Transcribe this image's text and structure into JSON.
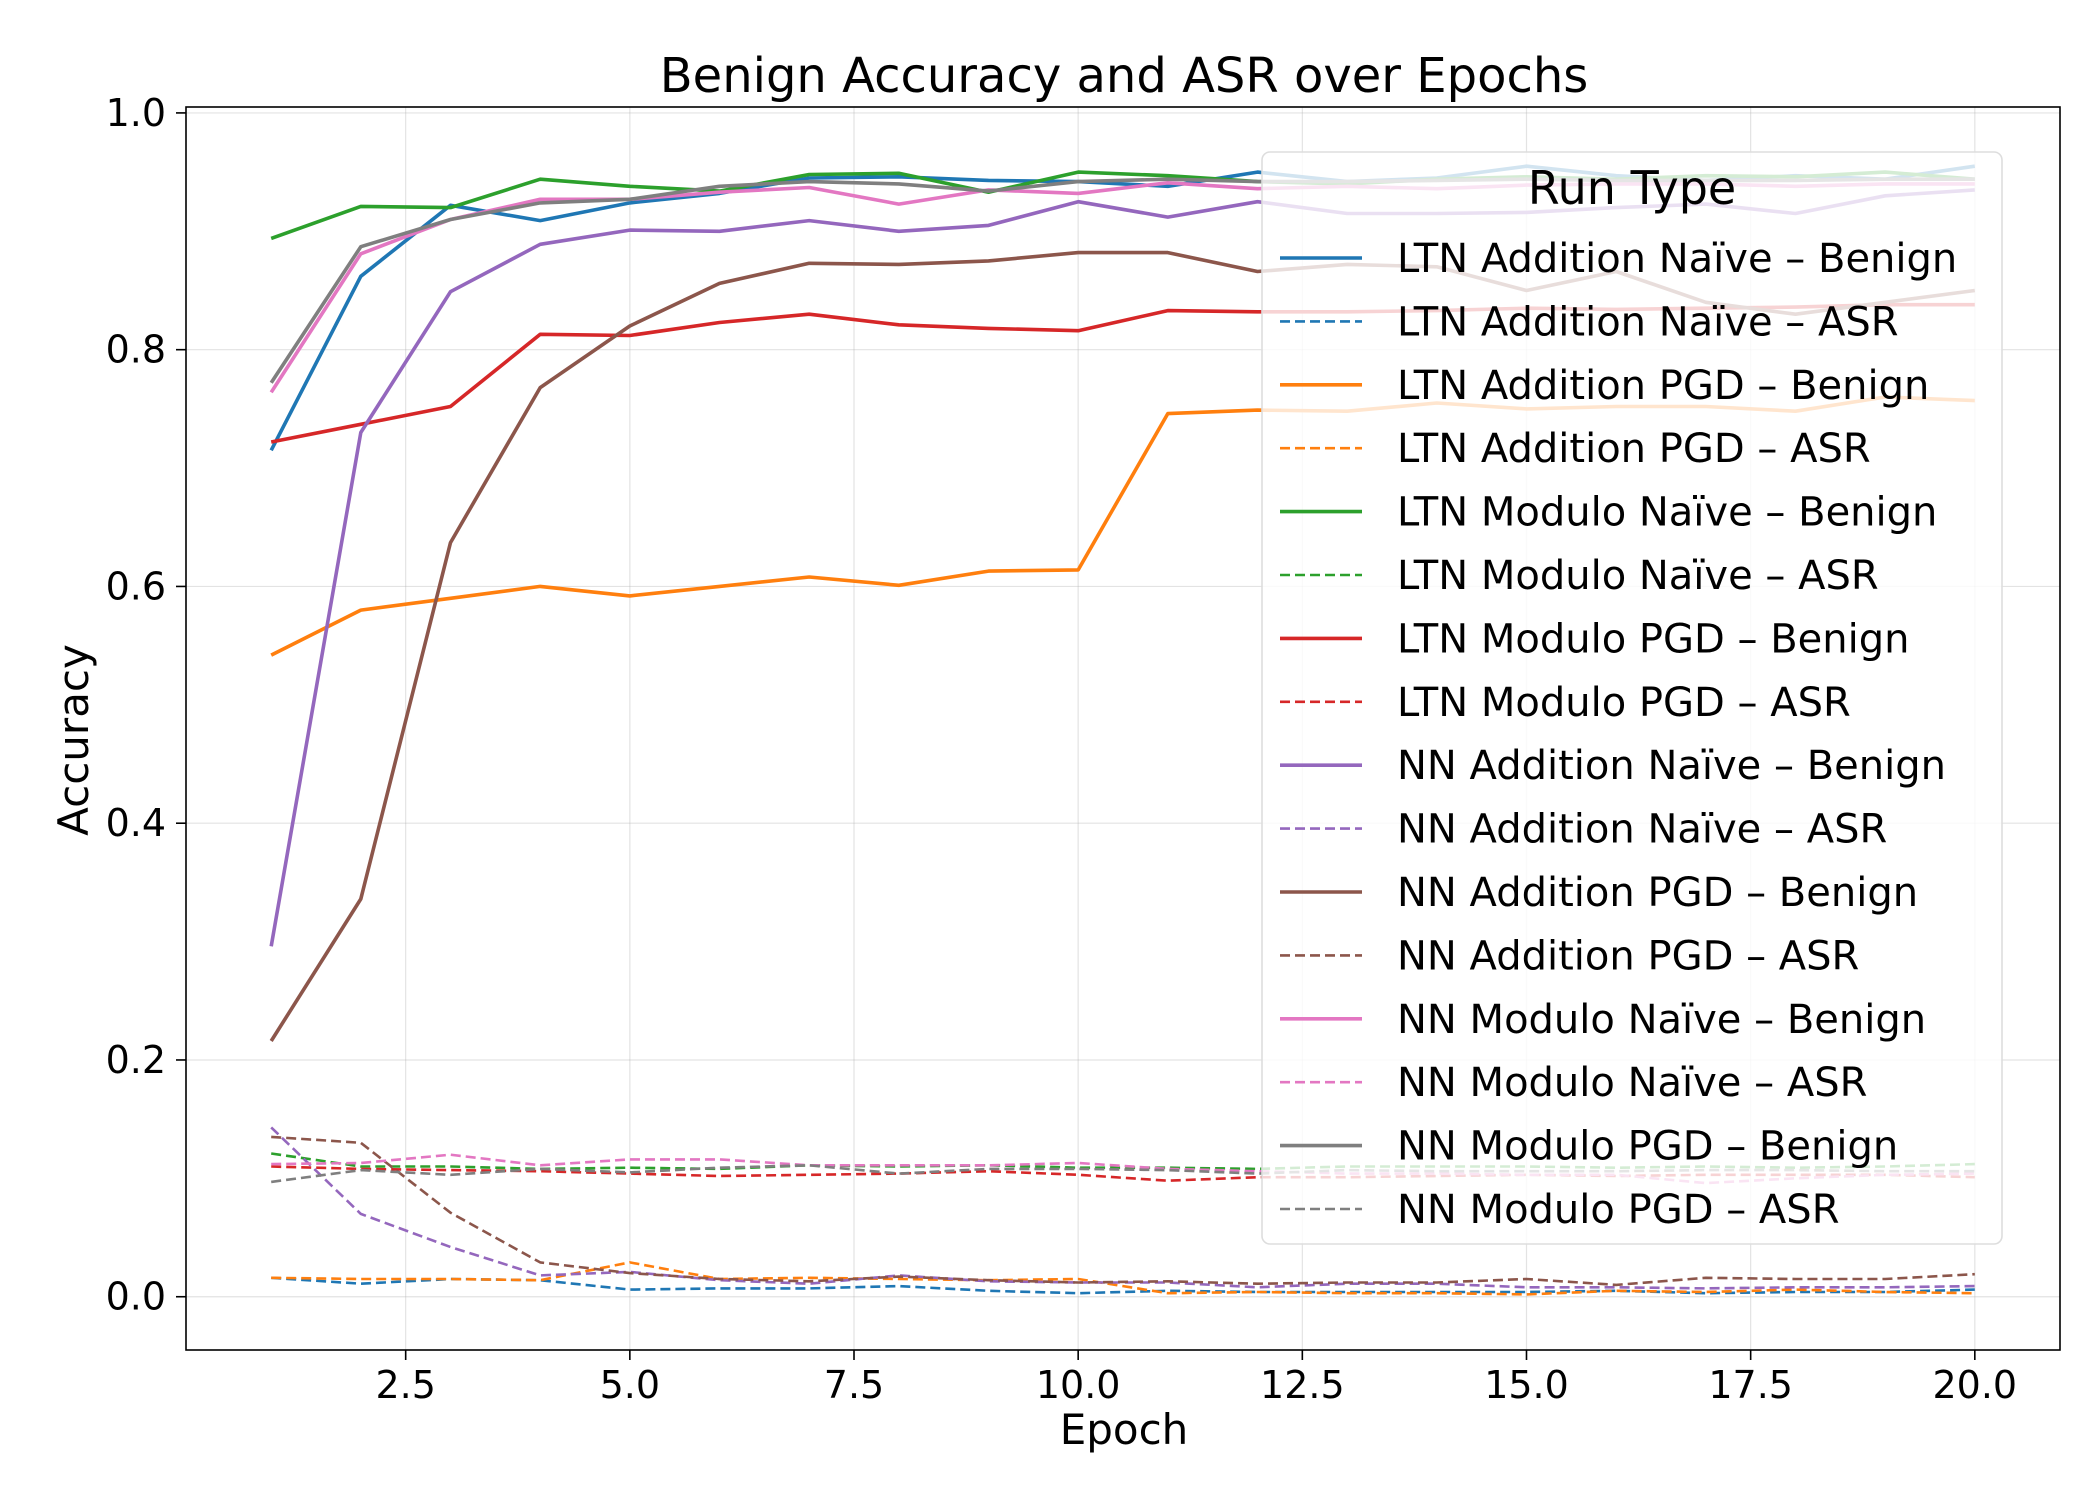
{
  "chart_data": {
    "type": "line",
    "title": "Benign Accuracy and ASR over Epochs",
    "xlabel": "Epoch",
    "ylabel": "Accuracy",
    "xlim": [
      0.05,
      20.95
    ],
    "ylim": [
      -0.045,
      1.005
    ],
    "xticks": [
      2.5,
      5.0,
      7.5,
      10.0,
      12.5,
      15.0,
      17.5,
      20.0
    ],
    "xtick_labels": [
      "2.5",
      "5.0",
      "7.5",
      "10.0",
      "12.5",
      "15.0",
      "17.5",
      "20.0"
    ],
    "yticks": [
      0.0,
      0.2,
      0.4,
      0.6,
      0.8,
      1.0
    ],
    "ytick_labels": [
      "0.0",
      "0.2",
      "0.4",
      "0.6",
      "0.8",
      "1.0"
    ],
    "grid": true,
    "legend": {
      "title": "Run Type",
      "placement": "upper-right"
    },
    "x": [
      1,
      2,
      3,
      4,
      5,
      6,
      7,
      8,
      9,
      10,
      11,
      12,
      13,
      14,
      15,
      16,
      17,
      18,
      19,
      20
    ],
    "series": [
      {
        "name": "LTN Addition Naïve – Benign",
        "color": "#1f77b4",
        "style": "solid",
        "values": [
          0.715,
          0.862,
          0.922,
          0.909,
          0.924,
          0.932,
          0.945,
          0.946,
          0.943,
          0.942,
          0.938,
          0.95,
          0.942,
          0.945,
          0.955,
          0.947,
          0.943,
          0.947,
          0.944,
          0.955
        ]
      },
      {
        "name": "LTN Addition Naïve – ASR",
        "color": "#1f77b4",
        "style": "dashed",
        "values": [
          0.016,
          0.011,
          0.015,
          0.014,
          0.006,
          0.007,
          0.007,
          0.009,
          0.005,
          0.003,
          0.005,
          0.004,
          0.004,
          0.004,
          0.004,
          0.005,
          0.003,
          0.004,
          0.004,
          0.006
        ]
      },
      {
        "name": "LTN Addition PGD – Benign",
        "color": "#ff7f0e",
        "style": "solid",
        "values": [
          0.542,
          0.58,
          0.59,
          0.6,
          0.592,
          0.6,
          0.608,
          0.601,
          0.613,
          0.614,
          0.746,
          0.749,
          0.748,
          0.755,
          0.75,
          0.752,
          0.752,
          0.748,
          0.76,
          0.757
        ]
      },
      {
        "name": "LTN Addition PGD – ASR",
        "color": "#ff7f0e",
        "style": "dashed",
        "values": [
          0.016,
          0.015,
          0.015,
          0.014,
          0.029,
          0.015,
          0.016,
          0.015,
          0.014,
          0.015,
          0.003,
          0.004,
          0.003,
          0.003,
          0.002,
          0.005,
          0.004,
          0.006,
          0.004,
          0.003
        ]
      },
      {
        "name": "LTN Modulo Naïve – Benign",
        "color": "#2ca02c",
        "style": "solid",
        "values": [
          0.894,
          0.921,
          0.92,
          0.944,
          0.938,
          0.934,
          0.948,
          0.949,
          0.933,
          0.95,
          0.947,
          0.942,
          0.94,
          0.944,
          0.946,
          0.944,
          0.947,
          0.946,
          0.95,
          0.944
        ]
      },
      {
        "name": "LTN Modulo Naïve – ASR",
        "color": "#2ca02c",
        "style": "dashed",
        "values": [
          0.121,
          0.11,
          0.11,
          0.108,
          0.109,
          0.108,
          0.111,
          0.11,
          0.111,
          0.109,
          0.109,
          0.108,
          0.11,
          0.11,
          0.11,
          0.109,
          0.11,
          0.109,
          0.11,
          0.112
        ]
      },
      {
        "name": "LTN Modulo PGD – Benign",
        "color": "#d62728",
        "style": "solid",
        "values": [
          0.722,
          0.737,
          0.752,
          0.813,
          0.812,
          0.823,
          0.83,
          0.821,
          0.818,
          0.816,
          0.833,
          0.832,
          0.832,
          0.833,
          0.835,
          0.834,
          0.835,
          0.836,
          0.838,
          0.838
        ]
      },
      {
        "name": "LTN Modulo PGD – ASR",
        "color": "#d62728",
        "style": "dashed",
        "values": [
          0.11,
          0.108,
          0.107,
          0.106,
          0.104,
          0.102,
          0.103,
          0.104,
          0.106,
          0.103,
          0.098,
          0.101,
          0.101,
          0.102,
          0.103,
          0.102,
          0.103,
          0.103,
          0.103,
          0.101
        ]
      },
      {
        "name": "NN Addition Naïve – Benign",
        "color": "#9467bd",
        "style": "solid",
        "values": [
          0.296,
          0.73,
          0.849,
          0.889,
          0.901,
          0.9,
          0.909,
          0.9,
          0.905,
          0.925,
          0.912,
          0.925,
          0.915,
          0.915,
          0.916,
          0.92,
          0.923,
          0.915,
          0.93,
          0.935
        ]
      },
      {
        "name": "NN Addition Naïve – ASR",
        "color": "#9467bd",
        "style": "dashed",
        "values": [
          0.143,
          0.07,
          0.042,
          0.018,
          0.021,
          0.014,
          0.011,
          0.018,
          0.013,
          0.012,
          0.012,
          0.008,
          0.011,
          0.011,
          0.008,
          0.008,
          0.007,
          0.008,
          0.008,
          0.009
        ]
      },
      {
        "name": "NN Addition PGD – Benign",
        "color": "#8c564b",
        "style": "solid",
        "values": [
          0.216,
          0.336,
          0.637,
          0.768,
          0.82,
          0.856,
          0.873,
          0.872,
          0.875,
          0.882,
          0.882,
          0.866,
          0.872,
          0.87,
          0.85,
          0.866,
          0.84,
          0.83,
          0.84,
          0.85
        ]
      },
      {
        "name": "NN Addition PGD – ASR",
        "color": "#8c564b",
        "style": "dashed",
        "values": [
          0.135,
          0.13,
          0.071,
          0.029,
          0.02,
          0.015,
          0.013,
          0.017,
          0.014,
          0.012,
          0.013,
          0.011,
          0.012,
          0.012,
          0.015,
          0.01,
          0.016,
          0.015,
          0.015,
          0.019
        ]
      },
      {
        "name": "NN Modulo Naïve – Benign",
        "color": "#e377c2",
        "style": "solid",
        "values": [
          0.764,
          0.881,
          0.91,
          0.927,
          0.927,
          0.933,
          0.937,
          0.923,
          0.935,
          0.932,
          0.941,
          0.936,
          0.938,
          0.936,
          0.939,
          0.94,
          0.94,
          0.938,
          0.94,
          0.94
        ]
      },
      {
        "name": "NN Modulo Naïve – ASR",
        "color": "#e377c2",
        "style": "dashed",
        "values": [
          0.112,
          0.113,
          0.12,
          0.111,
          0.116,
          0.116,
          0.111,
          0.111,
          0.111,
          0.113,
          0.108,
          0.106,
          0.104,
          0.104,
          0.103,
          0.103,
          0.096,
          0.1,
          0.103,
          0.104
        ]
      },
      {
        "name": "NN Modulo PGD – Benign",
        "color": "#7f7f7f",
        "style": "solid",
        "values": [
          0.772,
          0.887,
          0.91,
          0.924,
          0.927,
          0.938,
          0.942,
          0.94,
          0.934,
          0.942,
          0.944,
          0.942,
          0.942,
          0.943,
          0.944,
          0.943,
          0.943,
          0.943,
          0.944,
          0.944
        ]
      },
      {
        "name": "NN Modulo PGD – ASR",
        "color": "#7f7f7f",
        "style": "dashed",
        "values": [
          0.097,
          0.107,
          0.103,
          0.108,
          0.105,
          0.109,
          0.111,
          0.104,
          0.108,
          0.108,
          0.107,
          0.104,
          0.107,
          0.106,
          0.106,
          0.106,
          0.107,
          0.107,
          0.106,
          0.106
        ]
      }
    ]
  }
}
